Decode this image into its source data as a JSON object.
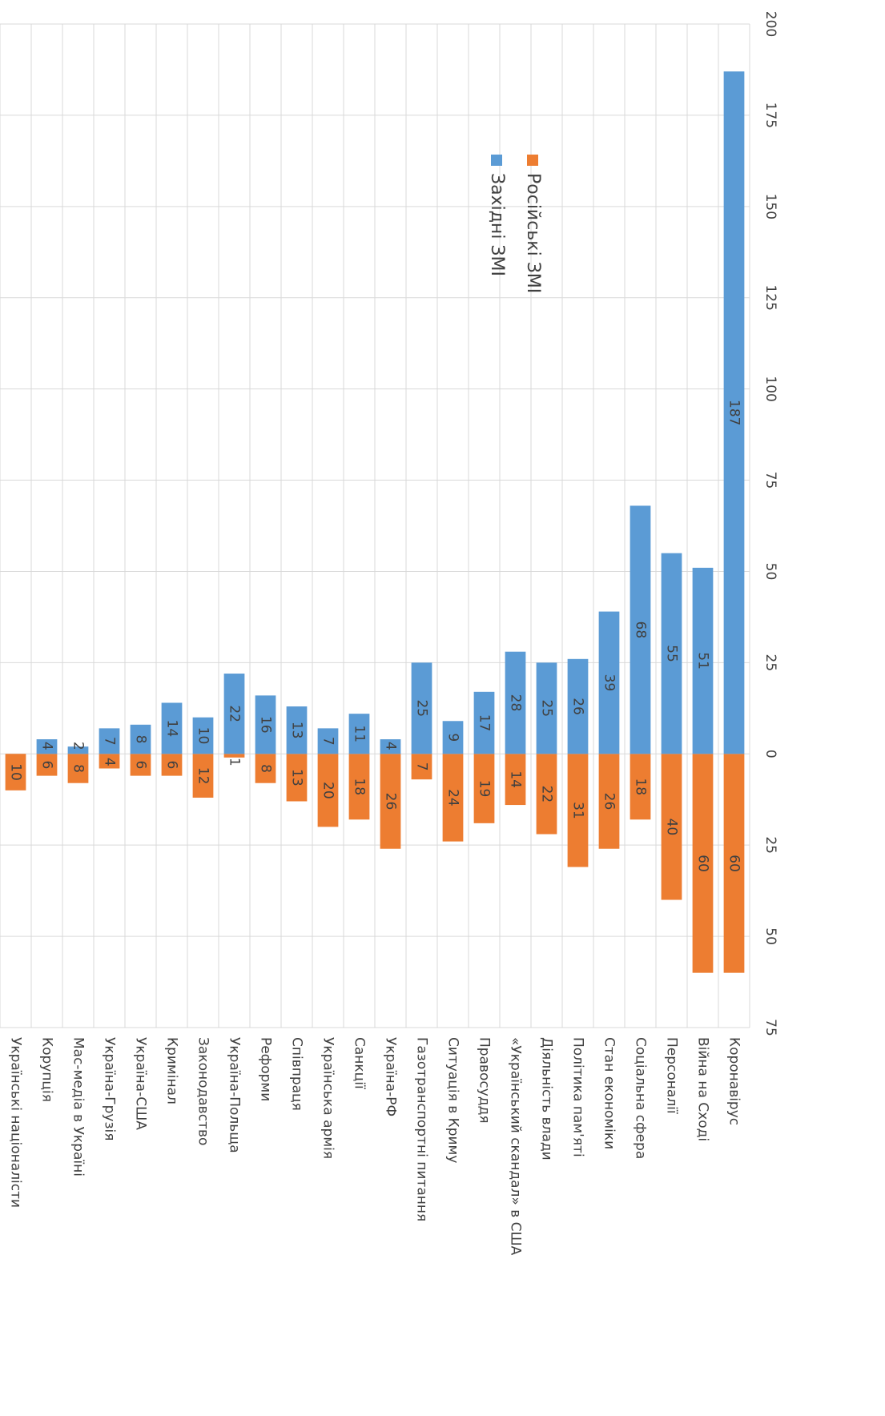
{
  "chart_data": {
    "type": "bar",
    "categories": [
      "Українські націоналісти",
      "Корупція",
      "Мас-медіа в Україні",
      "Україна-Грузія",
      "Україна-США",
      "Кримінал",
      "Законодавство",
      "Україна-Польща",
      "Реформи",
      "Співпраця",
      "Українська армія",
      "Санкції",
      "Україна-РФ",
      "Газотранспортні питання",
      "Ситуація в Криму",
      "Правосуддя",
      "«Український скандал» в США",
      "Діяльність влади",
      "Політика пам'яті",
      "Стан економіки",
      "Соціальна сфера",
      "Персоналії",
      "Війна на Сході",
      "Коронавірус"
    ],
    "series": [
      {
        "name": "Російські ЗМІ",
        "color": "#ed7d31",
        "values": [
          10,
          6,
          8,
          4,
          6,
          6,
          12,
          1,
          8,
          13,
          20,
          18,
          26,
          7,
          24,
          19,
          14,
          22,
          31,
          26,
          18,
          40,
          60,
          60
        ]
      },
      {
        "name": "Західні ЗМІ",
        "color": "#5b9bd5",
        "values": [
          null,
          4,
          2,
          7,
          8,
          14,
          10,
          22,
          16,
          13,
          7,
          11,
          4,
          25,
          9,
          17,
          28,
          25,
          26,
          39,
          68,
          55,
          51,
          187
        ]
      }
    ],
    "ylim": [
      -75,
      200
    ],
    "yticks": [
      200,
      175,
      150,
      125,
      100,
      75,
      50,
      25,
      0,
      {
        "value": -25,
        "label": "25"
      },
      {
        "value": -50,
        "label": "50"
      },
      {
        "value": -75,
        "label": "75"
      }
    ],
    "grid": true
  }
}
